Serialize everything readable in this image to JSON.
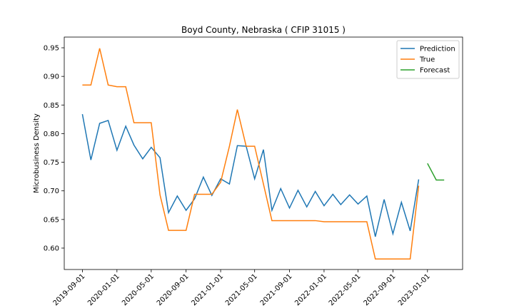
{
  "chart_data": {
    "type": "line",
    "title": "Boyd County, Nebraska ( CFIP 31015 )",
    "y_label": "Microbusiness Density",
    "x": [
      "2019-09-01",
      "2019-10-01",
      "2019-11-01",
      "2019-12-01",
      "2020-01-01",
      "2020-02-01",
      "2020-03-01",
      "2020-04-01",
      "2020-05-01",
      "2020-06-01",
      "2020-07-01",
      "2020-08-01",
      "2020-09-01",
      "2020-10-01",
      "2020-11-01",
      "2020-12-01",
      "2021-01-01",
      "2021-02-01",
      "2021-03-01",
      "2021-04-01",
      "2021-05-01",
      "2021-06-01",
      "2021-07-01",
      "2021-08-01",
      "2021-09-01",
      "2021-10-01",
      "2021-11-01",
      "2021-12-01",
      "2022-01-01",
      "2022-02-01",
      "2022-03-01",
      "2022-04-01",
      "2022-05-01",
      "2022-06-01",
      "2022-07-01",
      "2022-08-01",
      "2022-09-01",
      "2022-10-01",
      "2022-11-01",
      "2022-12-01"
    ],
    "series": [
      {
        "name": "Prediction",
        "color": "#1f77b4",
        "values": [
          0.834,
          0.754,
          0.818,
          0.823,
          0.771,
          0.813,
          0.78,
          0.756,
          0.776,
          0.758,
          0.662,
          0.691,
          0.666,
          0.686,
          0.724,
          0.692,
          0.721,
          0.712,
          0.779,
          0.778,
          0.721,
          0.772,
          0.666,
          0.704,
          0.67,
          0.701,
          0.672,
          0.699,
          0.674,
          0.694,
          0.676,
          0.693,
          0.677,
          0.691,
          0.62,
          0.685,
          0.625,
          0.68,
          0.63,
          0.72
        ]
      },
      {
        "name": "True",
        "color": "#ff7f0e",
        "values": [
          0.885,
          0.885,
          0.949,
          0.885,
          0.882,
          0.882,
          0.819,
          0.819,
          0.819,
          0.693,
          0.631,
          0.631,
          0.631,
          0.694,
          0.694,
          0.694,
          0.715,
          0.778,
          0.842,
          0.778,
          0.778,
          0.712,
          0.648,
          0.648,
          0.648,
          0.648,
          0.648,
          0.648,
          0.646,
          0.646,
          0.646,
          0.646,
          0.646,
          0.646,
          0.581,
          0.581,
          0.581,
          0.581,
          0.581,
          0.709
        ]
      },
      {
        "name": "Forecast",
        "color": "#2ca02c",
        "x": [
          "2023-01-01",
          "2023-02-01",
          "2023-03-01"
        ],
        "values": [
          0.748,
          0.719,
          0.719
        ]
      }
    ],
    "xlim": [
      "2019-06-29",
      "2023-05-05"
    ],
    "xticks": [
      "2019-09-01",
      "2020-01-01",
      "2020-05-01",
      "2020-09-01",
      "2021-01-01",
      "2021-05-01",
      "2021-09-01",
      "2022-01-01",
      "2022-05-01",
      "2022-09-01",
      "2023-01-01"
    ],
    "ylim": [
      0.5626,
      0.9687
    ],
    "yticks": [
      {
        "value": 0.6,
        "label": "0.60"
      },
      0.65,
      {
        "value": 0.7,
        "label": "0.70"
      },
      0.75,
      {
        "value": 0.8,
        "label": "0.80"
      },
      0.85,
      {
        "value": 0.9,
        "label": "0.90"
      },
      0.95
    ],
    "grid": false,
    "legend": "upper right"
  }
}
